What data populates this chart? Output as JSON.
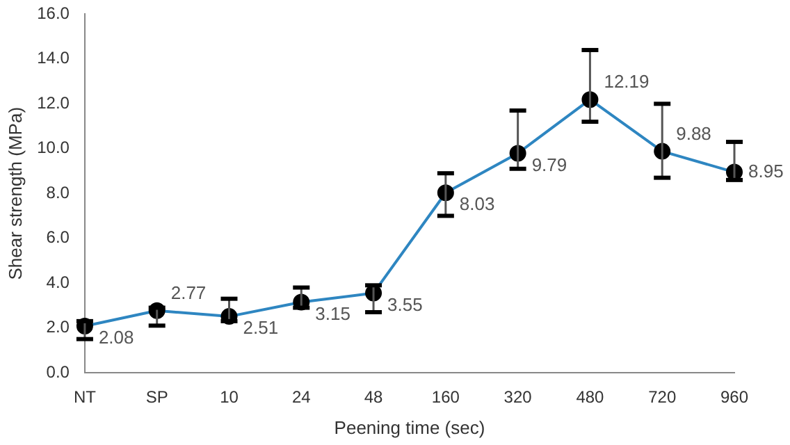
{
  "chart_data": {
    "type": "line",
    "xlabel": "Peening time (sec)",
    "ylabel": "Shear strength (MPa)",
    "categories": [
      "NT",
      "SP",
      "10",
      "24",
      "48",
      "160",
      "320",
      "480",
      "720",
      "960"
    ],
    "series": [
      {
        "color": "#2e86c1",
        "values": [
          2.08,
          2.77,
          2.51,
          3.15,
          3.55,
          8.03,
          9.79,
          12.19,
          9.88,
          8.95
        ],
        "errors": [
          [
            1.5,
            2.3
          ],
          [
            2.1,
            2.9
          ],
          [
            2.3,
            3.3
          ],
          [
            2.9,
            3.8
          ],
          [
            2.7,
            3.9
          ],
          [
            7.0,
            8.9
          ],
          [
            9.1,
            11.7
          ],
          [
            11.2,
            14.4
          ],
          [
            8.7,
            12.0
          ],
          [
            8.6,
            10.3
          ]
        ]
      }
    ],
    "data_labels": true,
    "marker": "circle",
    "line_style": "solid",
    "grid": false,
    "legend": false,
    "ylim": [
      0,
      16
    ],
    "yticks": [
      {
        "value": 0,
        "label": "0.0"
      },
      {
        "value": 2,
        "label": "2.0"
      },
      {
        "value": 4,
        "label": "4.0"
      },
      {
        "value": 6,
        "label": "6.0"
      },
      {
        "value": 8,
        "label": "8.0"
      },
      {
        "value": 10,
        "label": "10.0"
      },
      {
        "value": 12,
        "label": "12.0"
      },
      {
        "value": 14,
        "label": "14.0"
      },
      {
        "value": 16,
        "label": "16.0"
      }
    ]
  }
}
